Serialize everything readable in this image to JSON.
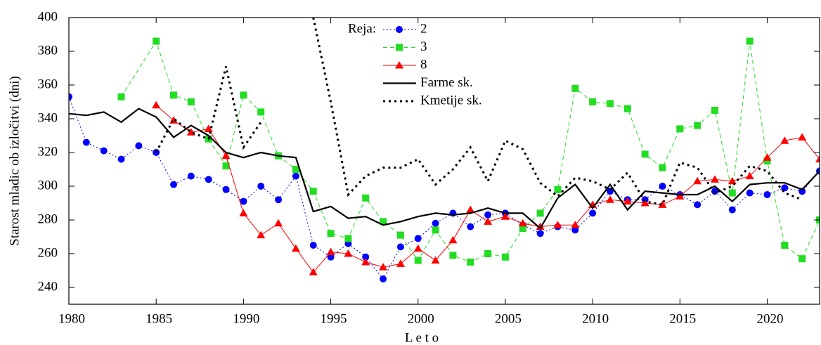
{
  "chart_data": {
    "type": "line",
    "xlabel": "L e t o",
    "ylabel": "Starost mladic ob izločitvi (dni)",
    "legend_title": "Reja:",
    "legend": "top-center",
    "xlim": [
      1980,
      2023
    ],
    "ylim": [
      230,
      400
    ],
    "xticks": [
      1980,
      1985,
      1990,
      1995,
      2000,
      2005,
      2010,
      2015,
      2020
    ],
    "yticks": [
      240,
      260,
      280,
      300,
      320,
      340,
      360,
      380,
      400
    ],
    "series": [
      {
        "name": "2",
        "color": "#0000ff",
        "marker": "circle",
        "line_style": "dotted",
        "x": [
          1980,
          1981,
          1982,
          1983,
          1984,
          1985,
          1986,
          1987,
          1988,
          1989,
          1990,
          1991,
          1992,
          1993,
          1994,
          1995,
          1996,
          1997,
          1998,
          1999,
          2000,
          2001,
          2002,
          2003,
          2004,
          2005,
          2006,
          2007,
          2008,
          2009,
          2010,
          2011,
          2012,
          2013,
          2014,
          2015,
          2016,
          2017,
          2018,
          2019,
          2020,
          2021,
          2022,
          2023
        ],
        "values": [
          353,
          326,
          321,
          316,
          324,
          320,
          301,
          306,
          304,
          298,
          291,
          300,
          292,
          306,
          265,
          258,
          266,
          258,
          245,
          264,
          269,
          278,
          284,
          276,
          283,
          284,
          277,
          272,
          276,
          274,
          284,
          297,
          292,
          292,
          300,
          295,
          289,
          297,
          286,
          296,
          295,
          299,
          297,
          309
        ]
      },
      {
        "name": "3",
        "color": "#22dd22",
        "marker": "square",
        "line_style": "dashed",
        "x": [
          1983,
          1985,
          1986,
          1987,
          1988,
          1989,
          1990,
          1991,
          1992,
          1993,
          1994,
          1995,
          1996,
          1997,
          1998,
          1999,
          2000,
          2001,
          2002,
          2003,
          2004,
          2005,
          2006,
          2007,
          2008,
          2009,
          2010,
          2011,
          2012,
          2013,
          2014,
          2015,
          2016,
          2017,
          2018,
          2019,
          2020,
          2021,
          2022,
          2023
        ],
        "values": [
          353,
          386,
          354,
          350,
          328,
          312,
          354,
          344,
          318,
          310,
          297,
          272,
          269,
          293,
          279,
          271,
          256,
          274,
          259,
          255,
          260,
          258,
          275,
          284,
          298,
          358,
          350,
          349,
          346,
          319,
          311,
          334,
          336,
          345,
          296,
          386,
          315,
          265,
          257,
          280
        ]
      },
      {
        "name": "8",
        "color": "#ff0000",
        "marker": "triangle",
        "line_style": "solid",
        "x": [
          1985,
          1986,
          1987,
          1988,
          1989,
          1990,
          1991,
          1992,
          1993,
          1994,
          1995,
          1996,
          1997,
          1998,
          1999,
          2000,
          2001,
          2002,
          2003,
          2004,
          2005,
          2006,
          2007,
          2008,
          2009,
          2010,
          2011,
          2012,
          2013,
          2014,
          2015,
          2016,
          2017,
          2018,
          2019,
          2020,
          2021,
          2022,
          2023
        ],
        "values": [
          348,
          339,
          332,
          334,
          318,
          284,
          271,
          278,
          263,
          249,
          261,
          260,
          255,
          252,
          254,
          263,
          256,
          268,
          286,
          279,
          282,
          278,
          276,
          277,
          277,
          289,
          292,
          291,
          290,
          289,
          294,
          303,
          304,
          303,
          306,
          317,
          327,
          329,
          316
        ]
      },
      {
        "name": "Farme sk.",
        "color": "#000000",
        "marker": null,
        "line_style": "thick-solid",
        "x": [
          1980,
          1981,
          1982,
          1983,
          1984,
          1985,
          1986,
          1987,
          1988,
          1989,
          1990,
          1991,
          1992,
          1993,
          1994,
          1995,
          1996,
          1997,
          1998,
          1999,
          2000,
          2001,
          2002,
          2003,
          2004,
          2005,
          2006,
          2007,
          2008,
          2009,
          2010,
          2011,
          2012,
          2013,
          2014,
          2015,
          2016,
          2017,
          2018,
          2019,
          2020,
          2021,
          2022,
          2023
        ],
        "values": [
          343,
          342,
          344,
          338,
          346,
          341,
          329,
          336,
          330,
          320,
          317,
          320,
          318,
          317,
          285,
          288,
          281,
          282,
          277,
          279,
          282,
          284,
          283,
          284,
          287,
          284,
          284,
          275,
          293,
          301,
          287,
          301,
          286,
          297,
          296,
          295,
          295,
          300,
          291,
          301,
          302,
          302,
          298,
          309
        ]
      },
      {
        "name": "Kmetije sk.",
        "color": "#000000",
        "marker": null,
        "line_style": "thick-dotted",
        "x": [
          1985,
          1986,
          1987,
          1988,
          1989,
          1990,
          1991,
          1992,
          1993,
          1994,
          1995,
          1996,
          1997,
          1998,
          1999,
          2000,
          2001,
          2002,
          2003,
          2004,
          2005,
          2006,
          2007,
          2008,
          2009,
          2010,
          2011,
          2012,
          2013,
          2014,
          2015,
          2016,
          2017,
          2018,
          2019,
          2020,
          2021,
          2022
        ],
        "values": [
          320,
          340,
          332,
          328,
          371,
          323,
          338,
          null,
          null,
          400,
          350,
          295,
          306,
          311,
          311,
          316,
          301,
          310,
          323,
          303,
          327,
          322,
          302,
          294,
          305,
          303,
          298,
          308,
          291,
          289,
          314,
          311,
          296,
          300,
          312,
          309,
          296,
          292
        ]
      }
    ]
  }
}
